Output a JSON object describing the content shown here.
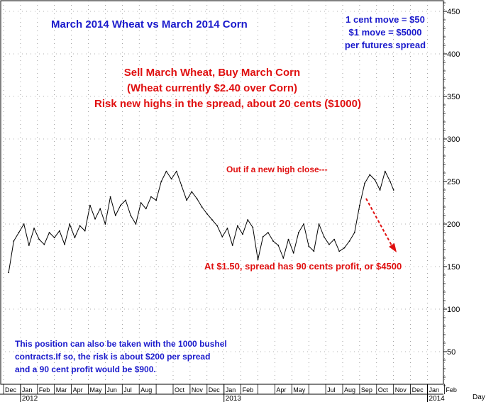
{
  "chart_data": {
    "type": "line",
    "title": "March 2014 Wheat vs March 2014 Corn",
    "xlabel": "",
    "ylabel": "",
    "x_unit_label": "Day",
    "ylim": [
      0,
      470
    ],
    "yticks": [
      50,
      100,
      150,
      200,
      250,
      300,
      350,
      400,
      450
    ],
    "grid": "dotted",
    "months": [
      "Dec",
      "Jan",
      "Feb",
      "Mar",
      "Apr",
      "May",
      "Jun",
      "Jul",
      "Aug",
      "Sep",
      "Oct",
      "Nov",
      "Dec",
      "Jan",
      "Feb",
      "Mar",
      "Apr",
      "May",
      "Jun",
      "Jul",
      "Aug",
      "Sep",
      "Oct",
      "Nov",
      "Dec",
      "Jan",
      "Feb"
    ],
    "month_show": [
      true,
      true,
      true,
      true,
      true,
      true,
      true,
      true,
      true,
      false,
      true,
      true,
      true,
      true,
      true,
      false,
      true,
      true,
      false,
      true,
      true,
      true,
      true,
      true,
      true,
      true,
      true
    ],
    "years": [
      "2012",
      "2013",
      "2014"
    ],
    "year_month_index": [
      1,
      13,
      25
    ],
    "series": [
      {
        "x_month": [
          0.3,
          0.6,
          0.9,
          1.2,
          1.5,
          1.8,
          2.1,
          2.4,
          2.7,
          3.0,
          3.3,
          3.6,
          3.9,
          4.2,
          4.5,
          4.8,
          5.1,
          5.4,
          5.7,
          6.0,
          6.3,
          6.6,
          6.9,
          7.2,
          7.5,
          7.8,
          8.1,
          8.4,
          8.7,
          9.0,
          9.3,
          9.6,
          9.9,
          10.2,
          10.5,
          10.8,
          11.1,
          11.4,
          11.7,
          12.0,
          12.3,
          12.6,
          12.9,
          13.2,
          13.5,
          13.8,
          14.1,
          14.4,
          14.7,
          15.0,
          15.3,
          15.6,
          15.9,
          16.2,
          16.5,
          16.8,
          17.1,
          17.4,
          17.7,
          18.0,
          18.3,
          18.6,
          18.9,
          19.2,
          19.5,
          19.8,
          20.1,
          20.4,
          20.7,
          21.0,
          21.3,
          21.6,
          21.9,
          22.2,
          22.5,
          22.8,
          23.0
        ],
        "values": [
          143,
          180,
          190,
          200,
          175,
          195,
          182,
          176,
          190,
          184,
          192,
          176,
          200,
          184,
          198,
          192,
          222,
          206,
          218,
          200,
          232,
          210,
          222,
          228,
          210,
          200,
          225,
          218,
          232,
          228,
          250,
          262,
          253,
          262,
          245,
          228,
          238,
          230,
          220,
          212,
          205,
          198,
          185,
          195,
          175,
          198,
          188,
          205,
          196,
          158,
          185,
          190,
          180,
          175,
          160,
          182,
          166,
          190,
          200,
          174,
          168,
          200,
          185,
          176,
          182,
          168,
          172,
          180,
          190,
          222,
          248,
          258,
          252,
          240,
          262,
          250,
          240
        ]
      }
    ],
    "annotations": {
      "move_line1": "1 cent move = $50",
      "move_line2": "$1 move = $5000",
      "move_line3": "per futures spread",
      "trade_line1": "Sell March Wheat, Buy March Corn",
      "trade_line2": "(Wheat currently $2.40 over Corn)",
      "trade_line3": "Risk new highs in the spread, about 20 cents ($1000)",
      "exit_note": "Out if a new high close---",
      "target_note": "At $1.50, spread has 90 cents profit, or $4500",
      "bushel_line1": "This position can also be taken with the 1000 bushel",
      "bushel_line2": "contracts.If so, the risk is about $200 per spread",
      "bushel_line3": "and a 90 cent profit would be $900."
    },
    "colors": {
      "blue_text": "#1a1acc",
      "red_text": "#e01010",
      "line": "#000000"
    }
  }
}
